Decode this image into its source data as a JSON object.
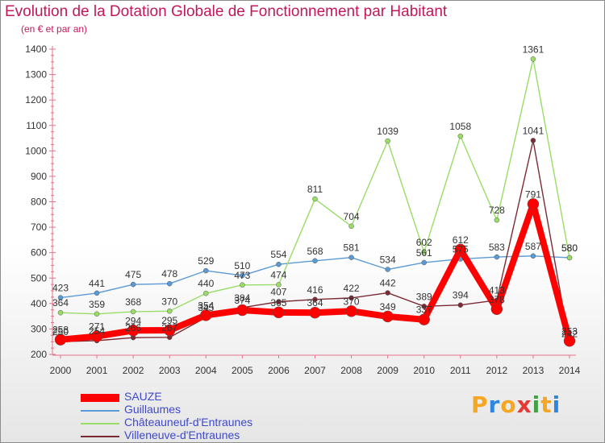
{
  "title": "Evolution de la Dotation Globale de Fonctionnement par Habitant",
  "subtitle": "(en € et par an)",
  "logo": {
    "letters": [
      "P",
      "r",
      "o",
      "x",
      "i",
      "t",
      "i"
    ],
    "colors": [
      "#f5a623",
      "#2e86de",
      "#f5a623",
      "#e53935",
      "#43a047",
      "#f5a623",
      "#2e86de"
    ]
  },
  "chart_data": {
    "type": "line",
    "title": "Evolution de la Dotation Globale de Fonctionnement par Habitant",
    "ylabel": "(en € et par an)",
    "xlabel": "",
    "ylim": [
      200,
      1400
    ],
    "yticks": [
      200,
      300,
      400,
      500,
      600,
      700,
      800,
      900,
      1000,
      1100,
      1200,
      1300,
      1400
    ],
    "categories": [
      "2000",
      "2001",
      "2002",
      "2003",
      "2004",
      "2005",
      "2006",
      "2007",
      "2008",
      "2009",
      "2010",
      "2011",
      "2012",
      "2013",
      "2014"
    ],
    "grid": false,
    "legend_position": "bottom-left",
    "series": [
      {
        "name": "SAUZE",
        "color": "#ff0000",
        "width": 8,
        "marker": 7,
        "values": [
          258,
          271,
          294,
          295,
          354,
          374,
          365,
          364,
          370,
          349,
          337,
          612,
          378,
          791,
          253
        ]
      },
      {
        "name": "Guillaumes",
        "color": "#5b9bd5",
        "width": 1.4,
        "marker": 3,
        "values": [
          423,
          441,
          475,
          478,
          529,
          510,
          554,
          568,
          581,
          534,
          561,
          575,
          583,
          587,
          580
        ]
      },
      {
        "name": "Châteauneuf-d'Entraunes",
        "color": "#99dd66",
        "width": 1.4,
        "marker": 3,
        "values": [
          364,
          359,
          368,
          370,
          440,
          473,
          474,
          811,
          704,
          1039,
          602,
          1058,
          728,
          1361,
          580
        ]
      },
      {
        "name": "Villeneuve-d'Entraunes",
        "color": "#7b2b35",
        "width": 1.4,
        "marker": 3,
        "values": [
          250,
          254,
          266,
          267,
          345,
          384,
          407,
          416,
          422,
          442,
          389,
          394,
          413,
          1041,
          242
        ]
      }
    ],
    "data_labels": [
      {
        "series": 2,
        "values": [
          "364",
          "359",
          "368",
          "370",
          "440",
          "473",
          "474",
          "811",
          "704",
          "1039",
          "602",
          "1058",
          "728",
          "1361",
          "580"
        ]
      },
      {
        "series": 1,
        "values": [
          "423",
          "441",
          "475",
          "478",
          "529",
          "510",
          "554",
          "568",
          "581",
          "534",
          "561",
          "575",
          "583",
          "587",
          "580"
        ]
      },
      {
        "series": 3,
        "values": [
          "250",
          "254",
          "266",
          "267",
          "345",
          "384",
          "407",
          "416",
          "422",
          "442",
          "389",
          "394",
          "413",
          "1041",
          "242"
        ]
      },
      {
        "series": 0,
        "values": [
          "258",
          "271",
          "294",
          "295",
          "354",
          "374",
          "365",
          "364",
          "370",
          "349",
          "337",
          "612",
          "378",
          "791",
          "253"
        ]
      }
    ]
  }
}
